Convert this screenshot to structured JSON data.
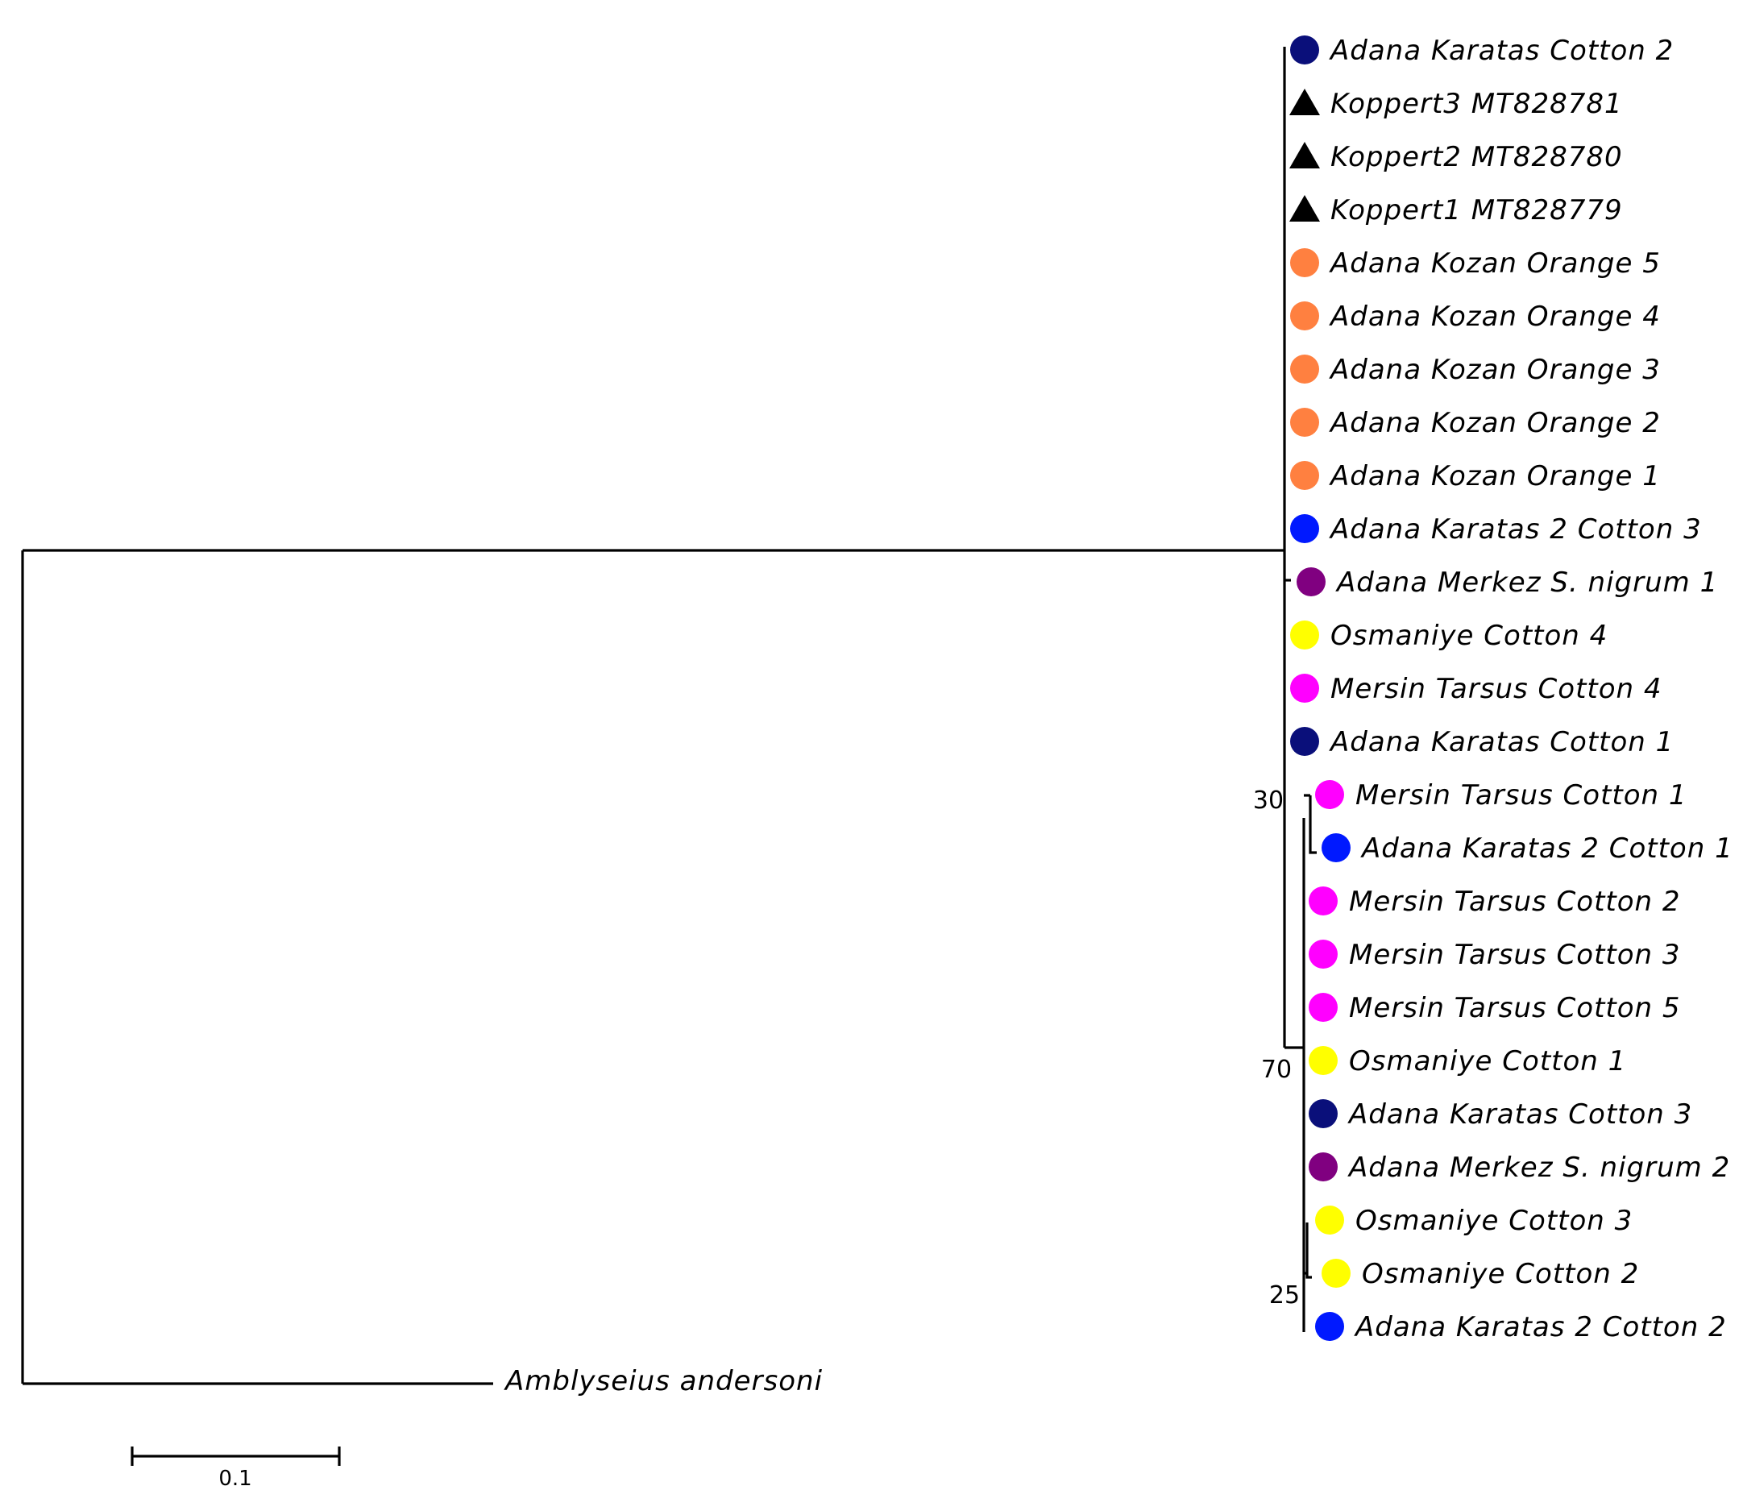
{
  "taxa": [
    {
      "label": "Adana Karatas Cotton 2",
      "marker": "circle",
      "color": "#0a0f7a"
    },
    {
      "label": "Koppert3  MT828781",
      "marker": "triangle",
      "color": "#000000"
    },
    {
      "label": "Koppert2  MT828780",
      "marker": "triangle",
      "color": "#000000"
    },
    {
      "label": "Koppert1  MT828779",
      "marker": "triangle",
      "color": "#000000"
    },
    {
      "label": "Adana Kozan Orange 5",
      "marker": "circle",
      "color": "#ff8040"
    },
    {
      "label": "Adana Kozan Orange 4",
      "marker": "circle",
      "color": "#ff8040"
    },
    {
      "label": "Adana Kozan Orange 3",
      "marker": "circle",
      "color": "#ff8040"
    },
    {
      "label": "Adana Kozan Orange 2",
      "marker": "circle",
      "color": "#ff8040"
    },
    {
      "label": "Adana Kozan Orange 1",
      "marker": "circle",
      "color": "#ff8040"
    },
    {
      "label": "Adana Karatas 2 Cotton 3",
      "marker": "circle",
      "color": "#0019ff"
    },
    {
      "label": "Adana Merkez S. nigrum 1",
      "marker": "circle",
      "color": "#800080"
    },
    {
      "label": "Osmaniye Cotton 4",
      "marker": "circle",
      "color": "#ffff00"
    },
    {
      "label": "Mersin Tarsus Cotton 4",
      "marker": "circle",
      "color": "#ff00ff"
    },
    {
      "label": "Adana Karatas Cotton 1",
      "marker": "circle",
      "color": "#0a0f7a"
    },
    {
      "label": "Mersin Tarsus Cotton 1",
      "marker": "circle",
      "color": "#ff00ff"
    },
    {
      "label": "Adana Karatas 2 Cotton 1",
      "marker": "circle",
      "color": "#0019ff"
    },
    {
      "label": "Mersin Tarsus Cotton 2",
      "marker": "circle",
      "color": "#ff00ff"
    },
    {
      "label": "Mersin Tarsus Cotton 3",
      "marker": "circle",
      "color": "#ff00ff"
    },
    {
      "label": "Mersin Tarsus Cotton 5",
      "marker": "circle",
      "color": "#ff00ff"
    },
    {
      "label": "Osmaniye Cotton 1",
      "marker": "circle",
      "color": "#ffff00"
    },
    {
      "label": "Adana Karatas Cotton 3",
      "marker": "circle",
      "color": "#0a0f7a"
    },
    {
      "label": "Adana Merkez S. nigrum 2",
      "marker": "circle",
      "color": "#800080"
    },
    {
      "label": "Osmaniye Cotton 3",
      "marker": "circle",
      "color": "#ffff00"
    },
    {
      "label": "Osmaniye Cotton 2",
      "marker": "circle",
      "color": "#ffff00"
    },
    {
      "label": "Adana Karatas 2 Cotton 2",
      "marker": "circle",
      "color": "#0019ff"
    }
  ],
  "outgroup": "Amblyseius andersoni",
  "bootstrap": [
    "30",
    "70",
    "25"
  ],
  "scale_bar": "0.1"
}
